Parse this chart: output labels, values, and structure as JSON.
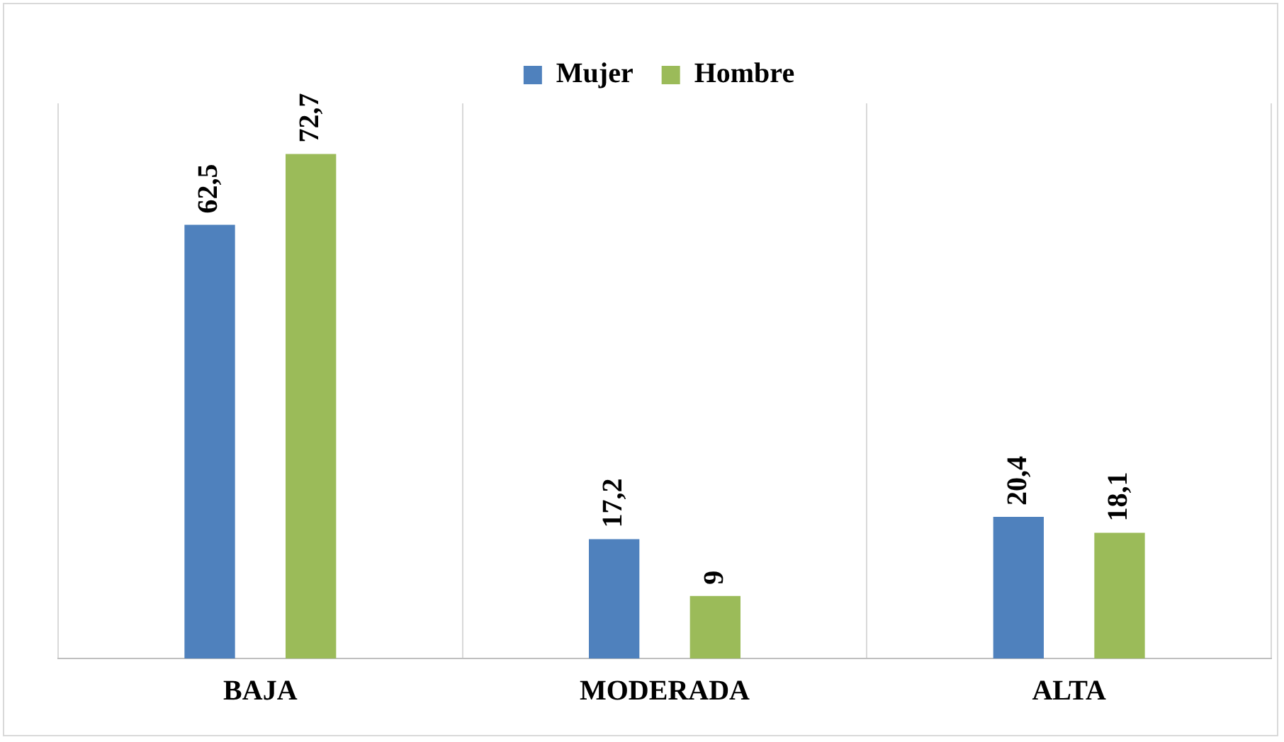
{
  "chart_data": {
    "type": "bar",
    "categories": [
      "BAJA",
      "MODERADA",
      "ALTA"
    ],
    "series": [
      {
        "name": "Mujer",
        "color": "#4f81bd",
        "values": [
          62.5,
          17.2,
          20.4
        ],
        "value_labels": [
          "62,5",
          "17,2",
          "20,4"
        ]
      },
      {
        "name": "Hombre",
        "color": "#9bbb59",
        "values": [
          72.7,
          9,
          18.1
        ],
        "value_labels": [
          "72,7",
          "9",
          "18,1"
        ]
      }
    ],
    "grid": "x",
    "legend": "top",
    "tick_labels": "x"
  }
}
